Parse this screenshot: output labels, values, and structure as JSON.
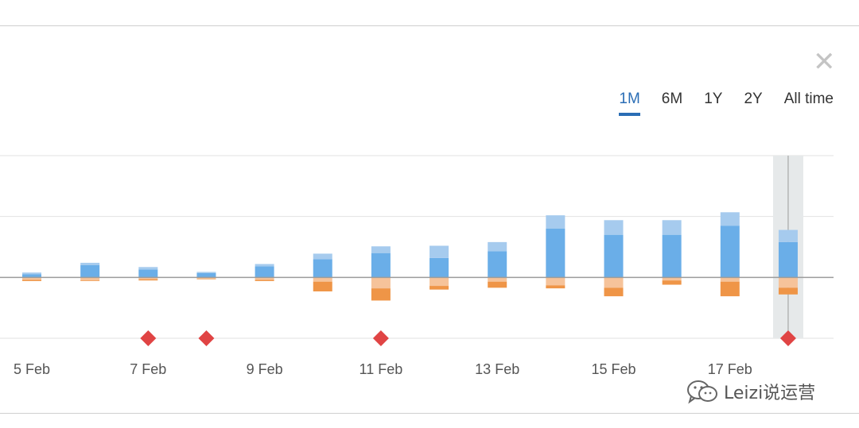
{
  "controls": {
    "close_glyph": "✕",
    "ranges": [
      {
        "label": "1M",
        "active": true
      },
      {
        "label": "6M",
        "active": false
      },
      {
        "label": "1Y",
        "active": false
      },
      {
        "label": "2Y",
        "active": false
      },
      {
        "label": "All time",
        "active": false
      }
    ]
  },
  "watermark": {
    "text": "Leizi说运营",
    "icon": "wechat-icon"
  },
  "chart_data": {
    "type": "bar",
    "stacked": true,
    "title": "",
    "xlabel": "",
    "ylabel": "",
    "grid": true,
    "legend": "none",
    "ylim": [
      -100,
      200
    ],
    "x_tick_labels": [
      "5 Feb",
      "7 Feb",
      "9 Feb",
      "11 Feb",
      "13 Feb",
      "15 Feb",
      "17 Feb"
    ],
    "x_tick_days": [
      5,
      7,
      9,
      11,
      13,
      15,
      17
    ],
    "days": [
      5,
      6,
      7,
      8,
      9,
      10,
      11,
      12,
      13,
      14,
      15,
      16,
      17,
      18
    ],
    "series": [
      {
        "color": "#6aaee8",
        "values": [
          5,
          20,
          13,
          7,
          18,
          30,
          40,
          32,
          43,
          80,
          70,
          70,
          85,
          58
        ]
      },
      {
        "color": "#a6cbee",
        "values": [
          3,
          4,
          4,
          2,
          4,
          9,
          11,
          20,
          15,
          22,
          24,
          24,
          22,
          20
        ]
      },
      {
        "color": "#f6c39a",
        "values": [
          -4,
          -5,
          -3,
          -2,
          -4,
          -7,
          -18,
          -14,
          -7,
          -13,
          -17,
          -5,
          -7,
          -17
        ]
      },
      {
        "color": "#ef9547",
        "values": [
          -2,
          -1,
          -2,
          -1,
          -2,
          -16,
          -20,
          -6,
          -10,
          -5,
          -14,
          -7,
          -24,
          -11
        ]
      }
    ],
    "markers": {
      "color": "#e04444",
      "days": [
        7,
        8,
        11,
        18
      ]
    },
    "highlight_day": 18
  }
}
